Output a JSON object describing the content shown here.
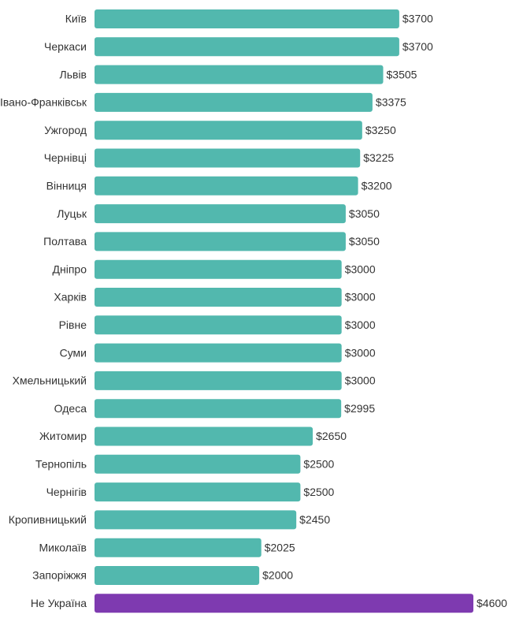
{
  "chart_data": {
    "type": "hbar",
    "categories": [
      "Київ",
      "Черкаси",
      "Львів",
      "Івано-Франківськ",
      "Ужгород",
      "Чернівці",
      "Вінниця",
      "Луцьк",
      "Полтава",
      "Дніпро",
      "Харків",
      "Рівне",
      "Суми",
      "Хмельницький",
      "Одеса",
      "Житомир",
      "Тернопіль",
      "Чернігів",
      "Кропивницький",
      "Миколаїв",
      "Запоріжжя",
      "Не Україна"
    ],
    "values": [
      3700,
      3700,
      3505,
      3375,
      3250,
      3225,
      3200,
      3050,
      3050,
      3000,
      3000,
      3000,
      3000,
      3000,
      2995,
      2650,
      2500,
      2500,
      2450,
      2025,
      2000,
      4600
    ],
    "value_labels": [
      "$3700",
      "$3700",
      "$3505",
      "$3375",
      "$3250",
      "$3225",
      "$3200",
      "$3050",
      "$3050",
      "$3000",
      "$3000",
      "$3000",
      "$3000",
      "$3000",
      "$2995",
      "$2650",
      "$2500",
      "$2500",
      "$2450",
      "$2025",
      "$2000",
      "$4600"
    ],
    "colors": [
      "#52b8ae",
      "#52b8ae",
      "#52b8ae",
      "#52b8ae",
      "#52b8ae",
      "#52b8ae",
      "#52b8ae",
      "#52b8ae",
      "#52b8ae",
      "#52b8ae",
      "#52b8ae",
      "#52b8ae",
      "#52b8ae",
      "#52b8ae",
      "#52b8ae",
      "#52b8ae",
      "#52b8ae",
      "#52b8ae",
      "#52b8ae",
      "#52b8ae",
      "#52b8ae",
      "#7e3ab0"
    ]
  }
}
